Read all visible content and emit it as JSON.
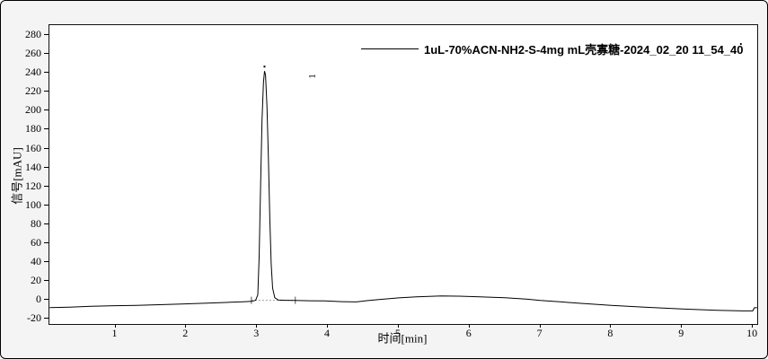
{
  "legend": {
    "label": "1uL-70%ACN-NH2-S-4mg mL壳寡糖-2024_02_20 11_54_40",
    "trailing_dot": "."
  },
  "peak": {
    "label": "1"
  },
  "chart_data": {
    "type": "line",
    "title": "1uL-70%ACN-NH2-S-4mg mL壳寡糖-2024_02_20 11_54_40",
    "xlabel": "时间[min]",
    "ylabel": "信号[mAU]",
    "xlim": [
      0.068,
      10.062
    ],
    "ylim": [
      -25.9,
      290.7
    ],
    "x_ticks": [
      1,
      2,
      3,
      4,
      5,
      6,
      7,
      8,
      9,
      10
    ],
    "y_ticks": [
      -20,
      0,
      20,
      40,
      60,
      80,
      100,
      120,
      140,
      160,
      180,
      200,
      220,
      240,
      260,
      280
    ],
    "grid": false,
    "legend_position": "top-center-inside",
    "line_color": "#000000",
    "integration_color": "#999999",
    "peaks": [
      {
        "label": "1",
        "retention_time_min": 3.105,
        "height_mAU": 242,
        "integration_start_min": 2.92,
        "integration_end_min": 3.54,
        "baseline_mAU": -0.8
      }
    ],
    "trace": [
      [
        0.07,
        -8.6
      ],
      [
        0.35,
        -8.0
      ],
      [
        0.66,
        -7.1
      ],
      [
        1.0,
        -6.5
      ],
      [
        1.3,
        -6.2
      ],
      [
        1.62,
        -5.5
      ],
      [
        1.93,
        -4.8
      ],
      [
        2.3,
        -3.8
      ],
      [
        2.62,
        -2.9
      ],
      [
        2.8,
        -2.3
      ],
      [
        2.92,
        -1.9
      ],
      [
        2.98,
        -0.8
      ],
      [
        3.01,
        5
      ],
      [
        3.03,
        45
      ],
      [
        3.05,
        120
      ],
      [
        3.07,
        190
      ],
      [
        3.09,
        230
      ],
      [
        3.105,
        242
      ],
      [
        3.12,
        238
      ],
      [
        3.14,
        205
      ],
      [
        3.16,
        150
      ],
      [
        3.18,
        85
      ],
      [
        3.2,
        38
      ],
      [
        3.22,
        12
      ],
      [
        3.25,
        2
      ],
      [
        3.3,
        -0.5
      ],
      [
        3.4,
        -0.8
      ],
      [
        3.54,
        -1.0
      ],
      [
        3.75,
        -1.3
      ],
      [
        3.96,
        -1.5
      ],
      [
        4.2,
        -2.2
      ],
      [
        4.4,
        -2.5
      ],
      [
        4.55,
        -1.2
      ],
      [
        4.72,
        0.0
      ],
      [
        5.0,
        1.8
      ],
      [
        5.25,
        2.8
      ],
      [
        5.6,
        3.8
      ],
      [
        5.85,
        3.6
      ],
      [
        6.1,
        3.0
      ],
      [
        6.5,
        1.9
      ],
      [
        6.8,
        0.5
      ],
      [
        7.0,
        -1.0
      ],
      [
        7.3,
        -2.5
      ],
      [
        7.55,
        -3.9
      ],
      [
        8.0,
        -6.2
      ],
      [
        8.5,
        -8.2
      ],
      [
        9.0,
        -10.0
      ],
      [
        9.5,
        -11.4
      ],
      [
        9.85,
        -12.0
      ],
      [
        10.0,
        -12.0
      ],
      [
        10.02,
        -8.8
      ],
      [
        10.06,
        -8.6
      ]
    ]
  }
}
